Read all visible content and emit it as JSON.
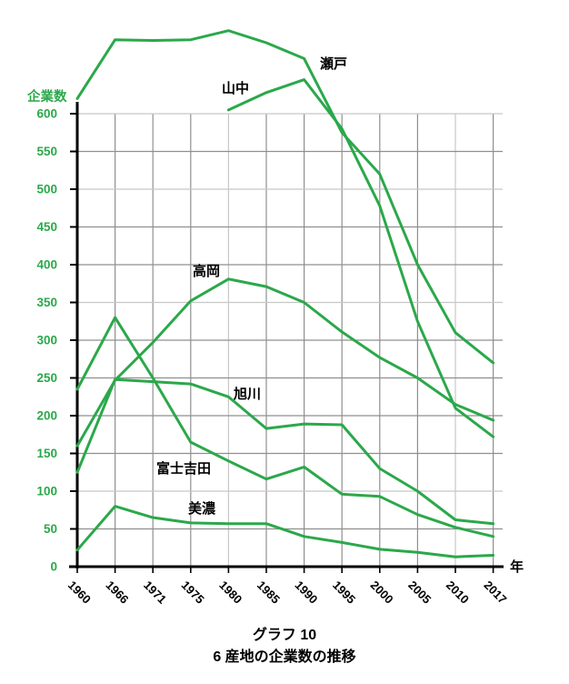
{
  "chart_data": {
    "type": "line",
    "title": "グラフ 10",
    "subtitle": "6 産地の企業数の推移",
    "ylabel": "企業数",
    "xlabel": "年",
    "line_color": "#2ba84a",
    "axis_label_color": "#2ba84a",
    "grid_color": "#8f8f8f",
    "grid_color_light": "#c7c7c7",
    "x": [
      1960,
      1966,
      1971,
      1975,
      1980,
      1985,
      1990,
      1995,
      2000,
      2005,
      2010,
      2017
    ],
    "ylim": [
      0,
      600
    ],
    "ytick_step": 50,
    "legend_position": "inline-labels",
    "grid": true,
    "series": [
      {
        "key": "seto",
        "name": "瀬戸",
        "values": [
          620,
          698,
          697,
          698,
          710,
          694,
          673,
          575,
          520,
          400,
          310,
          270
        ]
      },
      {
        "key": "yamanaka",
        "name": "山中",
        "values": [
          null,
          null,
          null,
          null,
          605,
          628,
          645,
          580,
          478,
          325,
          210,
          172
        ]
      },
      {
        "key": "takaoka",
        "name": "高岡",
        "values": [
          160,
          247,
          297,
          352,
          381,
          371,
          350,
          311,
          277,
          250,
          215,
          194
        ]
      },
      {
        "key": "asahikawa",
        "name": "旭川",
        "values": [
          125,
          248,
          245,
          242,
          225,
          183,
          189,
          188,
          130,
          100,
          62,
          57
        ]
      },
      {
        "key": "fujiyoshida",
        "name": "富士吉田",
        "values": [
          235,
          330,
          250,
          165,
          140,
          116,
          132,
          96,
          93,
          69,
          52,
          40
        ]
      },
      {
        "key": "mino",
        "name": "美濃",
        "values": [
          22,
          80,
          65,
          58,
          57,
          57,
          40,
          32,
          23,
          19,
          13,
          15
        ]
      }
    ]
  }
}
